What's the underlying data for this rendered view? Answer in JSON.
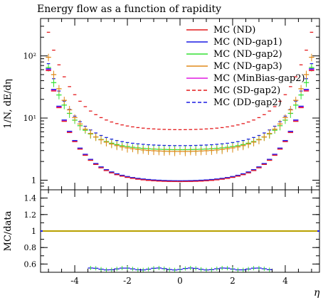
{
  "chart_data": {
    "type": "line",
    "title": "Energy flow as a function of rapidity",
    "xlabel": "η",
    "main_panel": {
      "ylabel": "1/N, dE/dη",
      "yscale": "log",
      "ylim": [
        0.7,
        400
      ],
      "yticks": [
        1,
        10,
        100
      ],
      "ytick_labels": [
        "1",
        "10¹",
        "10²"
      ]
    },
    "ratio_panel": {
      "ylabel": "MC/data",
      "ylim": [
        0.5,
        1.5
      ],
      "yticks": [
        0.6,
        0.8,
        1.0,
        1.2,
        1.4
      ],
      "ytick_labels": [
        "0.6",
        "0.8",
        "1",
        "1.2",
        "1.4"
      ]
    },
    "xlim": [
      -5.3,
      5.3
    ],
    "xticks": [
      -4,
      -2,
      0,
      2,
      4
    ],
    "xtick_labels": [
      "-4",
      "-2",
      "0",
      "2",
      "4"
    ],
    "legend_position": "top-right",
    "legend": [
      {
        "label": "MC (ND)",
        "color": "#e41a1c",
        "style": "solid"
      },
      {
        "label": "MC (ND-gap1)",
        "color": "#1a1ae4",
        "style": "solid"
      },
      {
        "label": "MC (ND-gap2)",
        "color": "#33e033",
        "style": "solid"
      },
      {
        "label": "MC (ND-gap3)",
        "color": "#e08a1a",
        "style": "solid"
      },
      {
        "label": "MC (MinBias-gap2)",
        "color": "#e01ae0",
        "style": "solid"
      },
      {
        "label": "MC (SD-gap2)",
        "color": "#e41a1c",
        "style": "dashed"
      },
      {
        "label": "MC (DD-gap2)",
        "color": "#1a1ae4",
        "style": "dashed"
      }
    ],
    "series": [
      {
        "key": "sd",
        "color": "#e41a1c",
        "dashed": true,
        "curve": {
          "center": 6.5,
          "edge": 240
        }
      },
      {
        "key": "dd",
        "color": "#1a1ae4",
        "dashed": true,
        "curve": {
          "center": 3.6,
          "edge": 75
        }
      },
      {
        "key": "gap2",
        "color": "#33e033",
        "dashed": false,
        "curve": {
          "center": 3.1,
          "edge": 65
        },
        "errors": true
      },
      {
        "key": "gap3",
        "color": "#e08a1a",
        "dashed": false,
        "curve": {
          "center": 2.9,
          "edge": 95
        },
        "errors": true
      },
      {
        "key": "mb",
        "color": "#e01ae0",
        "dashed": false,
        "curve": {
          "center": 0.95,
          "edge": 60
        }
      },
      {
        "key": "gap1",
        "color": "#1a1ae4",
        "dashed": false,
        "curve": {
          "center": 0.98,
          "edge": 62
        }
      },
      {
        "key": "nd",
        "color": "#e41a1c",
        "dashed": false,
        "curve": {
          "center": 0.95,
          "edge": 58
        }
      }
    ],
    "ratio_series": [
      {
        "key": "ratio-line",
        "color": "#b8a000",
        "value": 1.0
      },
      {
        "key": "ratio-low",
        "color": "#1a1ae4",
        "value": 0.54,
        "range": [
          -3.5,
          3.5
        ]
      }
    ]
  }
}
